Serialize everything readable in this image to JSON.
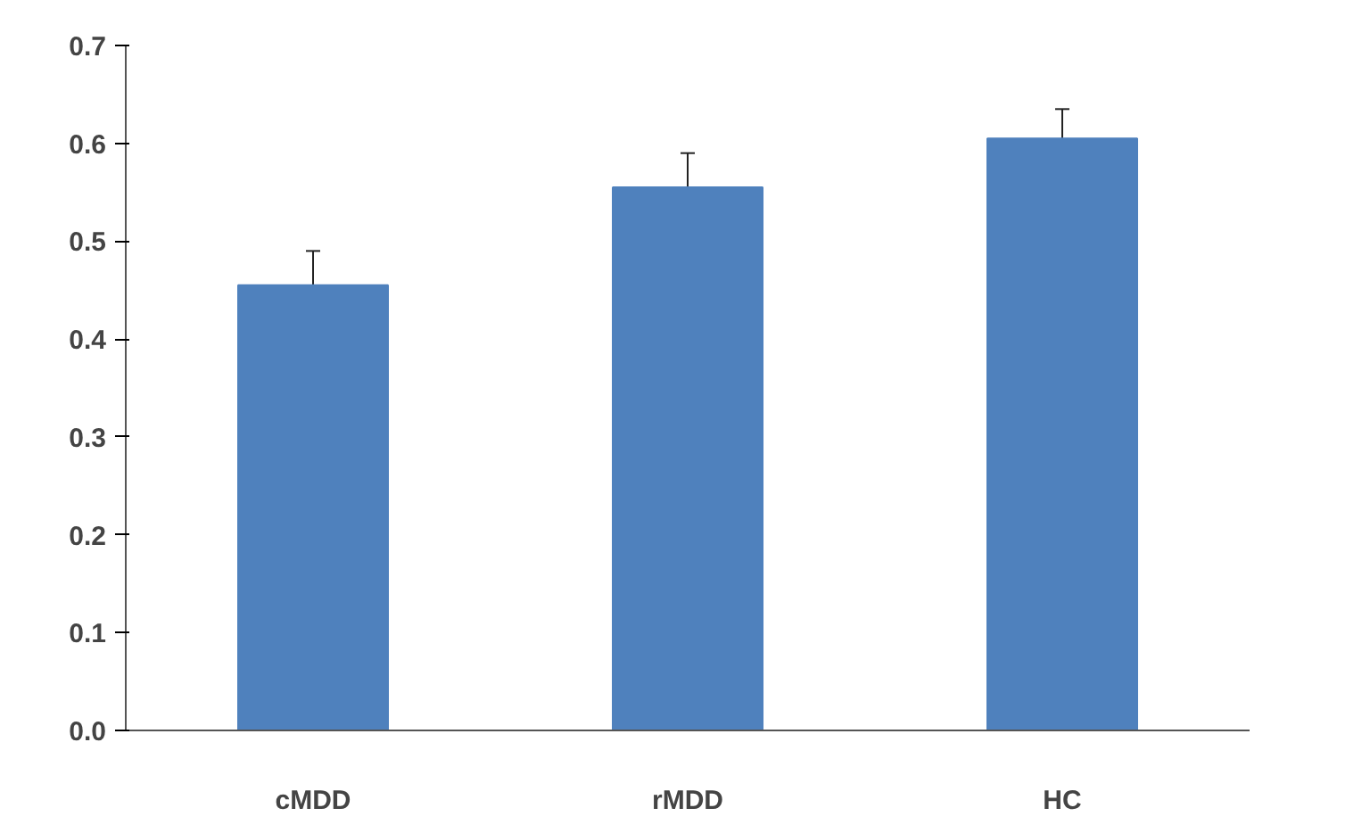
{
  "chart_data": {
    "type": "bar",
    "categories": [
      "cMDD",
      "rMDD",
      "HC"
    ],
    "values": [
      0.455,
      0.555,
      0.605
    ],
    "errors": [
      0.035,
      0.035,
      0.03
    ],
    "color": "#4f81bd",
    "ylim": [
      0,
      0.7
    ],
    "yticks": [
      {
        "value": 0,
        "label": "0.0"
      },
      0.1,
      0.2,
      0.3,
      0.4,
      0.5,
      0.6,
      0.7
    ],
    "grid": false
  }
}
